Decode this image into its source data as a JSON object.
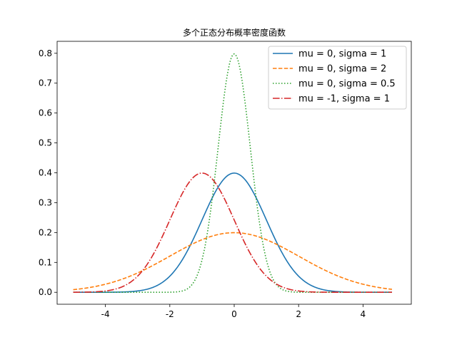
{
  "chart_data": {
    "type": "line",
    "title": "多个正态分布概率密度函数",
    "xlabel": "",
    "ylabel": "",
    "xlim": [
      -5.5,
      5.5
    ],
    "ylim": [
      -0.04,
      0.84
    ],
    "x_range": [
      -5,
      4.9
    ],
    "x_ticks": [
      -4,
      -2,
      0,
      2,
      4
    ],
    "x_tick_labels": [
      "-4",
      "-2",
      "0",
      "2",
      "4"
    ],
    "y_ticks": [
      0.0,
      0.1,
      0.2,
      0.3,
      0.4,
      0.5,
      0.6,
      0.7,
      0.8
    ],
    "y_tick_labels": [
      "0.0",
      "0.1",
      "0.2",
      "0.3",
      "0.4",
      "0.5",
      "0.6",
      "0.7",
      "0.8"
    ],
    "grid": false,
    "legend_position": "top-right",
    "series": [
      {
        "name": "mu = 0, sigma = 1",
        "mu": 0,
        "sigma": 1,
        "color": "#1f77b4",
        "dash": "solid"
      },
      {
        "name": "mu = 0, sigma = 2",
        "mu": 0,
        "sigma": 2,
        "color": "#ff7f0e",
        "dash": "dashed"
      },
      {
        "name": "mu = 0, sigma = 0.5",
        "mu": 0,
        "sigma": 0.5,
        "color": "#2ca02c",
        "dash": "dotted"
      },
      {
        "name": "mu = -1, sigma = 1",
        "mu": -1,
        "sigma": 1,
        "color": "#d62728",
        "dash": "dashdot"
      }
    ]
  }
}
